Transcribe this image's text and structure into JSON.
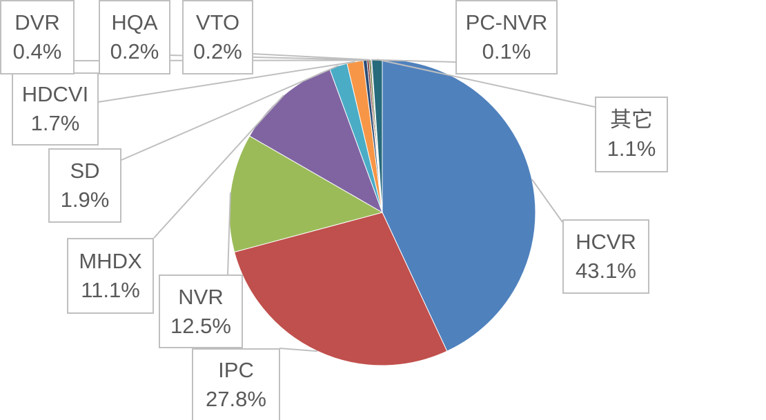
{
  "chart_data": {
    "type": "pie",
    "title": "",
    "slices": [
      {
        "label": "HCVR",
        "value": 43.1,
        "text": "43.1%",
        "color": "#4F81BD"
      },
      {
        "label": "IPC",
        "value": 27.8,
        "text": "27.8%",
        "color": "#C0504D"
      },
      {
        "label": "NVR",
        "value": 12.5,
        "text": "12.5%",
        "color": "#9BBB59"
      },
      {
        "label": "MHDX",
        "value": 11.1,
        "text": "11.1%",
        "color": "#8064A2"
      },
      {
        "label": "SD",
        "value": 1.9,
        "text": "1.9%",
        "color": "#4BACC6"
      },
      {
        "label": "HDCVI",
        "value": 1.7,
        "text": "1.7%",
        "color": "#F79646"
      },
      {
        "label": "DVR",
        "value": 0.4,
        "text": "0.4%",
        "color": "#2C4D75"
      },
      {
        "label": "HQA",
        "value": 0.2,
        "text": "0.2%",
        "color": "#772C2A"
      },
      {
        "label": "VTO",
        "value": 0.2,
        "text": "0.2%",
        "color": "#5F7530"
      },
      {
        "label": "PC-NVR",
        "value": 0.1,
        "text": "0.1%",
        "color": "#4D3B62"
      },
      {
        "label": "其它",
        "value": 1.1,
        "text": "1.1%",
        "color": "#276A7C"
      }
    ],
    "legend": "none"
  }
}
